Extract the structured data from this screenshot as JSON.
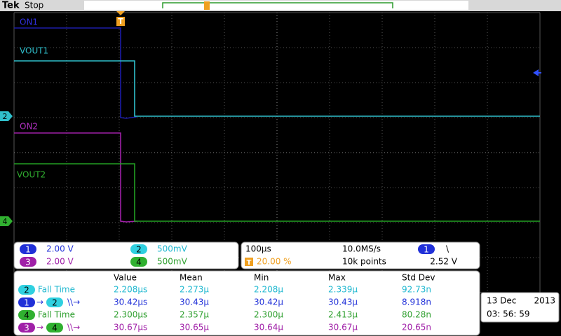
{
  "header": {
    "brand": "Tek",
    "status": "Stop"
  },
  "trigger_marker": "T",
  "waveform_labels": [
    "ON1",
    "VOUT1",
    "ON2",
    "VOUT2"
  ],
  "ground_markers": [
    "2",
    "4"
  ],
  "channels": [
    {
      "id": "1",
      "scale": "2.00 V"
    },
    {
      "id": "2",
      "scale": "500mV"
    },
    {
      "id": "3",
      "scale": "2.00 V"
    },
    {
      "id": "4",
      "scale": "500mV"
    }
  ],
  "acquisition": {
    "time_scale": "100µs",
    "sample_rate": "10.0MS/s",
    "trigger_source": "1",
    "trigger_slope": "\\",
    "trigger_position_icon": "T",
    "trigger_position": "20.00 %",
    "record_length": "10k points",
    "trigger_level": "2.52 V"
  },
  "measurements": {
    "columns": [
      "Value",
      "Mean",
      "Min",
      "Max",
      "Std Dev"
    ],
    "rows": [
      {
        "source": "2",
        "name": "Fall Time",
        "values": [
          "2.208µs",
          "2.273µ",
          "2.208µ",
          "2.339µ",
          "92.73n"
        ]
      },
      {
        "source": "1",
        "arrow": "→",
        "target": "2",
        "name": "\\\\→",
        "values": [
          "30.42µs",
          "30.43µ",
          "30.42µ",
          "30.43µ",
          "8.918n"
        ]
      },
      {
        "source": "4",
        "name": "Fall Time",
        "values": [
          "2.300µs",
          "2.357µ",
          "2.300µ",
          "2.413µ",
          "80.28n"
        ]
      },
      {
        "source": "3",
        "arrow": "→",
        "target": "4",
        "name": "\\\\→",
        "values": [
          "30.67µs",
          "30.65µ",
          "30.64µ",
          "30.67µ",
          "20.65n"
        ]
      }
    ]
  },
  "datetime": {
    "date": "13 Dec",
    "year": "2013",
    "time": "03: 56: 59"
  }
}
